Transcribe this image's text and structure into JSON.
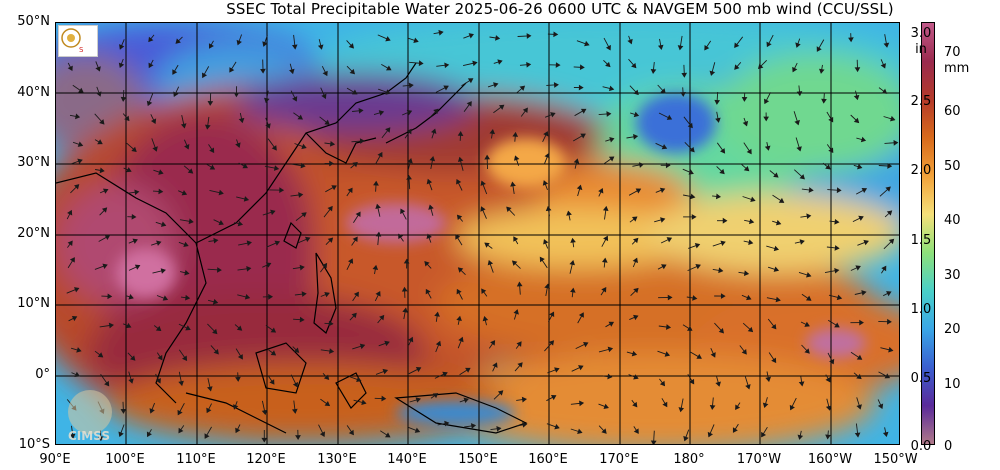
{
  "title": "SSEC Total Precipitable Water  2025-06-26 0600 UTC & NAVGEM 500 mb wind (CCU/SSL)",
  "lat_labels": [
    "50°N",
    "40°N",
    "30°N",
    "20°N",
    "10°N",
    "0°",
    "10°S"
  ],
  "lon_labels": [
    "90°E",
    "100°E",
    "110°E",
    "120°E",
    "130°E",
    "140°E",
    "150°E",
    "160°E",
    "170°E",
    "180°",
    "170°W",
    "160°W",
    "150°W"
  ],
  "colorbar": {
    "inch_labels": [
      "3.0",
      "in",
      "2.5",
      "2.0",
      "1.5",
      "1.0",
      "0.5",
      "0.0"
    ],
    "mm_labels": [
      "70",
      "mm",
      "60",
      "50",
      "40",
      "30",
      "20",
      "10",
      "0"
    ],
    "colors": [
      "#c25a8a",
      "#9a2a4e",
      "#b43a2a",
      "#d86a1c",
      "#f2a23a",
      "#f5e07a",
      "#8ee07a",
      "#4ad0c8",
      "#3aa6e6",
      "#3a5fd0",
      "#5a2a9a",
      "#b07a8a"
    ]
  },
  "branding": {
    "watermark": "CIMSS"
  }
}
